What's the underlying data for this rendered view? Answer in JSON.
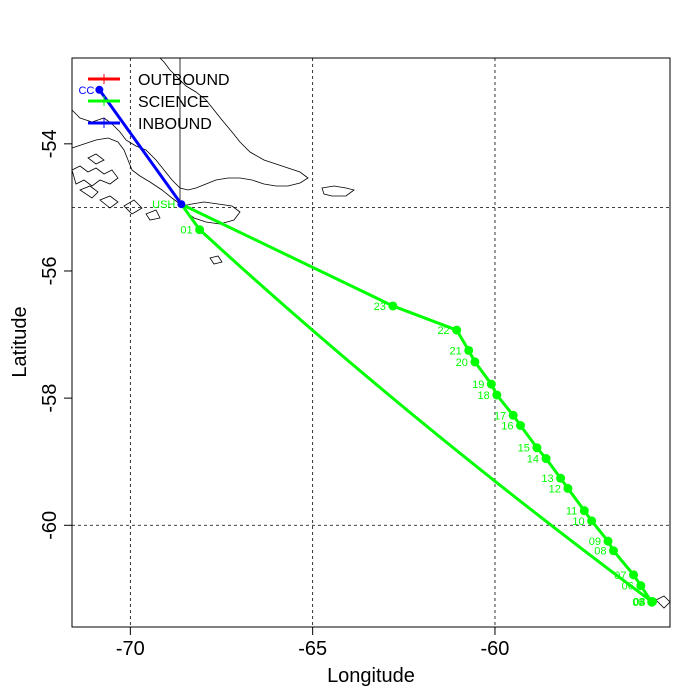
{
  "chart_data": {
    "type": "map",
    "xlabel": "Longitude",
    "ylabel": "Latitude",
    "xlim": [
      -71.6,
      -55.2
    ],
    "ylim": [
      -61.6,
      -52.65
    ],
    "x_ticks": [
      {
        "value": -70,
        "label": "-70"
      },
      {
        "value": -65,
        "label": "-65"
      },
      {
        "value": -60,
        "label": "-60"
      }
    ],
    "y_ticks": [
      {
        "value": -54,
        "label": "-54"
      },
      {
        "value": -56,
        "label": "-56"
      },
      {
        "value": -58,
        "label": "-58"
      },
      {
        "value": -60,
        "label": "-60"
      }
    ],
    "grid_x": [
      -70,
      -65,
      -60
    ],
    "grid_y": [
      -55,
      -60
    ],
    "legend": [
      {
        "label": "OUTBOUND",
        "color": "#ff0000"
      },
      {
        "label": "SCIENCE",
        "color": "#00ff00"
      },
      {
        "label": "INBOUND",
        "color": "#0000ff"
      }
    ],
    "outbound_label": "CC",
    "inbound_track": [
      {
        "lon": -70.85,
        "lat": -53.15
      },
      {
        "lon": -68.6,
        "lat": -54.95
      }
    ],
    "science_stations": [
      {
        "label": "01",
        "lon": -68.1,
        "lat": -55.35
      },
      {
        "label": "02",
        "lon": -55.7,
        "lat": -61.2
      },
      {
        "label": "03",
        "lon": -55.68,
        "lat": -61.2
      },
      {
        "label": "04",
        "lon": -55.69,
        "lat": -61.2
      },
      {
        "label": "05",
        "lon": -55.7,
        "lat": -61.21
      },
      {
        "label": "06",
        "lon": -56.0,
        "lat": -60.95
      },
      {
        "label": "07",
        "lon": -56.2,
        "lat": -60.78
      },
      {
        "label": "08",
        "lon": -56.75,
        "lat": -60.4
      },
      {
        "label": "09",
        "lon": -56.9,
        "lat": -60.25
      },
      {
        "label": "10",
        "lon": -57.35,
        "lat": -59.93
      },
      {
        "label": "11",
        "lon": -57.55,
        "lat": -59.77
      },
      {
        "label": "12",
        "lon": -58.0,
        "lat": -59.42
      },
      {
        "label": "13",
        "lon": -58.2,
        "lat": -59.26
      },
      {
        "label": "14",
        "lon": -58.6,
        "lat": -58.95
      },
      {
        "label": "15",
        "lon": -58.85,
        "lat": -58.78
      },
      {
        "label": "16",
        "lon": -59.3,
        "lat": -58.43
      },
      {
        "label": "17",
        "lon": -59.5,
        "lat": -58.27
      },
      {
        "label": "18",
        "lon": -59.95,
        "lat": -57.95
      },
      {
        "label": "19",
        "lon": -60.1,
        "lat": -57.78
      },
      {
        "label": "20",
        "lon": -60.55,
        "lat": -57.43
      },
      {
        "label": "21",
        "lon": -60.72,
        "lat": -57.25
      },
      {
        "label": "22",
        "lon": -61.05,
        "lat": -56.93
      },
      {
        "label": "23",
        "lon": -62.8,
        "lat": -56.55
      }
    ],
    "origin_label": "USH"
  }
}
